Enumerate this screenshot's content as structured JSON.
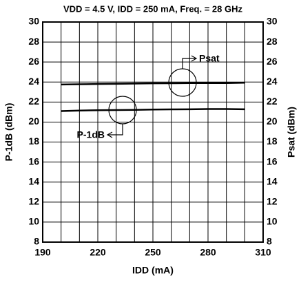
{
  "chart_data": {
    "type": "line",
    "title": "VDD = 4.5 V, IDD = 250 mA, Freq. = 28 GHz",
    "x_label": "IDD (mA)",
    "y_label": "P-1dB (dBm)",
    "y2_label": "Psat (dBm)",
    "annotations": [
      "Psat",
      "P-1dB"
    ],
    "x": [
      200,
      210,
      220,
      230,
      240,
      250,
      260,
      270,
      280,
      290,
      300
    ],
    "series": [
      {
        "name": "Psat",
        "color": "#000000",
        "axis": "y2",
        "values": [
          23.75,
          23.78,
          23.8,
          23.82,
          23.85,
          23.87,
          23.88,
          23.9,
          23.9,
          23.9,
          23.93
        ]
      },
      {
        "name": "P-1dB",
        "color": "#000000",
        "values": [
          21.1,
          21.15,
          21.18,
          21.2,
          21.22,
          21.25,
          21.27,
          21.28,
          21.3,
          21.3,
          21.28
        ]
      }
    ],
    "xlim": [
      190,
      310
    ],
    "xticks": [
      190,
      220,
      250,
      280,
      310
    ],
    "xgrid": [
      190,
      200,
      210,
      220,
      230,
      240,
      250,
      260,
      270,
      280,
      290,
      300,
      310
    ],
    "ylim": [
      8,
      30
    ],
    "yticks": [
      8,
      10,
      12,
      14,
      16,
      18,
      20,
      22,
      24,
      26,
      28,
      30
    ],
    "y2lim": [
      8,
      30
    ],
    "y2ticks": [
      8,
      10,
      12,
      14,
      16,
      18,
      20,
      22,
      24,
      26,
      28,
      30
    ],
    "grid": true
  }
}
